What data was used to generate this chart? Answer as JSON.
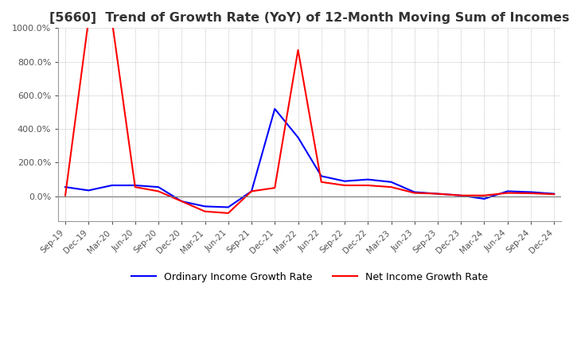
{
  "title": "[5660]  Trend of Growth Rate (YoY) of 12-Month Moving Sum of Incomes",
  "title_fontsize": 11.5,
  "legend_labels": [
    "Ordinary Income Growth Rate",
    "Net Income Growth Rate"
  ],
  "line_colors": [
    "#0000FF",
    "#FF0000"
  ],
  "ylim": [
    -150,
    1000
  ],
  "yticks": [
    0,
    200,
    400,
    600,
    800,
    1000
  ],
  "ytick_labels": [
    "0.0%",
    "200.0%",
    "400.0%",
    "600.0%",
    "800.0%",
    "1000.0%"
  ],
  "x_labels": [
    "Sep-19",
    "Dec-19",
    "Mar-20",
    "Jun-20",
    "Sep-20",
    "Dec-20",
    "Mar-21",
    "Jun-21",
    "Sep-21",
    "Dec-21",
    "Mar-22",
    "Jun-22",
    "Sep-22",
    "Dec-22",
    "Mar-23",
    "Jun-23",
    "Sep-23",
    "Dec-23",
    "Mar-24",
    "Jun-24",
    "Sep-24",
    "Dec-24"
  ],
  "ordinary_income": [
    55,
    35,
    65,
    65,
    55,
    -30,
    -60,
    -65,
    30,
    520,
    350,
    120,
    90,
    100,
    85,
    25,
    15,
    5,
    -15,
    30,
    25,
    15
  ],
  "net_income": [
    5,
    1050,
    1050,
    55,
    30,
    -30,
    -90,
    -100,
    30,
    50,
    870,
    85,
    65,
    65,
    55,
    20,
    15,
    5,
    5,
    20,
    18,
    12
  ],
  "background_color": "#FFFFFF",
  "grid_color": "#AAAAAA",
  "grid_style": ":"
}
